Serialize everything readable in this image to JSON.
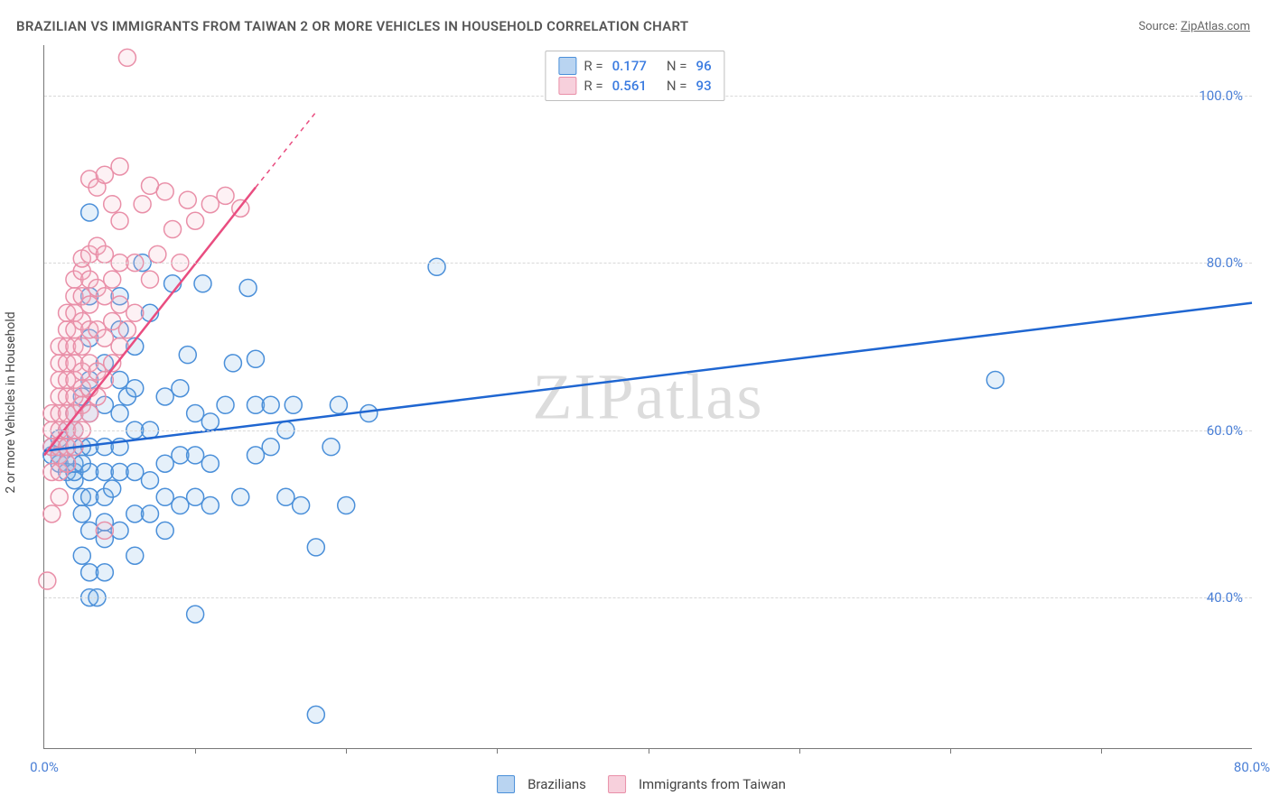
{
  "title": "BRAZILIAN VS IMMIGRANTS FROM TAIWAN 2 OR MORE VEHICLES IN HOUSEHOLD CORRELATION CHART",
  "source_prefix": "Source: ",
  "source_name": "ZipAtlas.com",
  "watermark": "ZIPatlas",
  "chart": {
    "type": "scatter",
    "ylabel": "2 or more Vehicles in Household",
    "xlim": [
      0,
      80
    ],
    "ylim": [
      22,
      106
    ],
    "xticks": [
      0,
      80
    ],
    "xtick_labels": [
      "0.0%",
      "80.0%"
    ],
    "xtick_minor": [
      10,
      20,
      30,
      40,
      50,
      60,
      70
    ],
    "yticks": [
      40,
      60,
      80,
      100
    ],
    "ytick_labels": [
      "40.0%",
      "60.0%",
      "80.0%",
      "100.0%"
    ],
    "grid_color": "#d8d8d8",
    "axis_color": "#777777",
    "background": "#ffffff",
    "marker_radius": 9.5,
    "marker_stroke_width": 1.5,
    "marker_fill_opacity": 0.2,
    "line_width": 2.5,
    "series": [
      {
        "name": "Brazilians",
        "color_stroke": "#4a8fd9",
        "color_fill": "#7fb3e6",
        "line_color": "#1f66d1",
        "R": "0.177",
        "N": "96",
        "trend": {
          "x1": 0,
          "y1": 57.5,
          "x2": 80,
          "y2": 75.2,
          "dash_after_x": 80
        },
        "points": [
          [
            0.5,
            57
          ],
          [
            0.5,
            58
          ],
          [
            1,
            56
          ],
          [
            1,
            57
          ],
          [
            1,
            59
          ],
          [
            1.5,
            55
          ],
          [
            1.5,
            56
          ],
          [
            1.5,
            58
          ],
          [
            1.5,
            60
          ],
          [
            2,
            54
          ],
          [
            2,
            55
          ],
          [
            2,
            56
          ],
          [
            2,
            58
          ],
          [
            2,
            60
          ],
          [
            2,
            62
          ],
          [
            2.5,
            45
          ],
          [
            2.5,
            50
          ],
          [
            2.5,
            52
          ],
          [
            2.5,
            56
          ],
          [
            2.5,
            58
          ],
          [
            2.5,
            64
          ],
          [
            3,
            40
          ],
          [
            3,
            43
          ],
          [
            3,
            48
          ],
          [
            3,
            52
          ],
          [
            3,
            55
          ],
          [
            3,
            58
          ],
          [
            3,
            62
          ],
          [
            3,
            66
          ],
          [
            3,
            71
          ],
          [
            3,
            76
          ],
          [
            3,
            86
          ],
          [
            4,
            43
          ],
          [
            4,
            47
          ],
          [
            4,
            49
          ],
          [
            4,
            52
          ],
          [
            4,
            55
          ],
          [
            4,
            58
          ],
          [
            4,
            63
          ],
          [
            4,
            68
          ],
          [
            4.5,
            53
          ],
          [
            5,
            48
          ],
          [
            5,
            55
          ],
          [
            5,
            58
          ],
          [
            5,
            62
          ],
          [
            5,
            66
          ],
          [
            5,
            72
          ],
          [
            5,
            76
          ],
          [
            5.5,
            64
          ],
          [
            6,
            45
          ],
          [
            6,
            50
          ],
          [
            6,
            55
          ],
          [
            6,
            60
          ],
          [
            6,
            65
          ],
          [
            6,
            70
          ],
          [
            6.5,
            80
          ],
          [
            7,
            50
          ],
          [
            7,
            54
          ],
          [
            7,
            60
          ],
          [
            7,
            74
          ],
          [
            8,
            48
          ],
          [
            8,
            52
          ],
          [
            8,
            56
          ],
          [
            8,
            64
          ],
          [
            8.5,
            77.5
          ],
          [
            9,
            51
          ],
          [
            9,
            57
          ],
          [
            9,
            65
          ],
          [
            9.5,
            69
          ],
          [
            10,
            38
          ],
          [
            10,
            52
          ],
          [
            10,
            57
          ],
          [
            10,
            62
          ],
          [
            10.5,
            77.5
          ],
          [
            11,
            51
          ],
          [
            11,
            56
          ],
          [
            11,
            61
          ],
          [
            12,
            63
          ],
          [
            12.5,
            68
          ],
          [
            13,
            52
          ],
          [
            13.5,
            77
          ],
          [
            14,
            57
          ],
          [
            14,
            63
          ],
          [
            14,
            68.5
          ],
          [
            15,
            58
          ],
          [
            15,
            63
          ],
          [
            16,
            52
          ],
          [
            16,
            60
          ],
          [
            16.5,
            63
          ],
          [
            17,
            51
          ],
          [
            18,
            46
          ],
          [
            19,
            58
          ],
          [
            19.5,
            63
          ],
          [
            20,
            51
          ],
          [
            21.5,
            62
          ],
          [
            26,
            79.5
          ],
          [
            63,
            66
          ],
          [
            18,
            26
          ],
          [
            3.5,
            40
          ]
        ]
      },
      {
        "name": "Immigrants from Taiwan",
        "color_stroke": "#e98fa8",
        "color_fill": "#f3b9c9",
        "line_color": "#e94d80",
        "R": "0.561",
        "N": "93",
        "trend": {
          "x1": 0,
          "y1": 57,
          "x2": 14,
          "y2": 89,
          "dash_after_x": 14,
          "x3": 18,
          "y3": 98
        },
        "points": [
          [
            0.2,
            42
          ],
          [
            0.5,
            50
          ],
          [
            0.5,
            55
          ],
          [
            0.5,
            58
          ],
          [
            0.5,
            60
          ],
          [
            0.5,
            62
          ],
          [
            1,
            52
          ],
          [
            1,
            55
          ],
          [
            1,
            57
          ],
          [
            1,
            58
          ],
          [
            1,
            60
          ],
          [
            1,
            62
          ],
          [
            1,
            64
          ],
          [
            1,
            66
          ],
          [
            1,
            68
          ],
          [
            1,
            70
          ],
          [
            1.5,
            56
          ],
          [
            1.5,
            58
          ],
          [
            1.5,
            60
          ],
          [
            1.5,
            62
          ],
          [
            1.5,
            64
          ],
          [
            1.5,
            66
          ],
          [
            1.5,
            68
          ],
          [
            1.5,
            70
          ],
          [
            1.5,
            72
          ],
          [
            1.5,
            74
          ],
          [
            2,
            58
          ],
          [
            2,
            60
          ],
          [
            2,
            62
          ],
          [
            2,
            64
          ],
          [
            2,
            66
          ],
          [
            2,
            68
          ],
          [
            2,
            70
          ],
          [
            2,
            72
          ],
          [
            2,
            74
          ],
          [
            2,
            76
          ],
          [
            2,
            78
          ],
          [
            2.5,
            60
          ],
          [
            2.5,
            63
          ],
          [
            2.5,
            65
          ],
          [
            2.5,
            67
          ],
          [
            2.5,
            70
          ],
          [
            2.5,
            73
          ],
          [
            2.5,
            76
          ],
          [
            2.5,
            79
          ],
          [
            2.5,
            80.5
          ],
          [
            3,
            62
          ],
          [
            3,
            65
          ],
          [
            3,
            68
          ],
          [
            3,
            72
          ],
          [
            3,
            75
          ],
          [
            3,
            78
          ],
          [
            3,
            81
          ],
          [
            3,
            90
          ],
          [
            3.5,
            64
          ],
          [
            3.5,
            67
          ],
          [
            3.5,
            72
          ],
          [
            3.5,
            77
          ],
          [
            3.5,
            82
          ],
          [
            3.5,
            89
          ],
          [
            4,
            48
          ],
          [
            4,
            66
          ],
          [
            4,
            71
          ],
          [
            4,
            76
          ],
          [
            4,
            81
          ],
          [
            4,
            90.5
          ],
          [
            4.5,
            68
          ],
          [
            4.5,
            73
          ],
          [
            4.5,
            78
          ],
          [
            4.5,
            87
          ],
          [
            5,
            70
          ],
          [
            5,
            75
          ],
          [
            5,
            80
          ],
          [
            5,
            85
          ],
          [
            5,
            91.5
          ],
          [
            5.5,
            72
          ],
          [
            5.5,
            104.5
          ],
          [
            6,
            74
          ],
          [
            6,
            80
          ],
          [
            6.5,
            87
          ],
          [
            7,
            78
          ],
          [
            7,
            89.2
          ],
          [
            7.5,
            81
          ],
          [
            8,
            88.5
          ],
          [
            8.5,
            84
          ],
          [
            9,
            80
          ],
          [
            9.5,
            87.5
          ],
          [
            10,
            85
          ],
          [
            11,
            87
          ],
          [
            12,
            88
          ],
          [
            13,
            86.5
          ]
        ]
      }
    ]
  },
  "legend_top": [
    {
      "swatch_fill": "#b9d4f1",
      "swatch_stroke": "#4a8fd9",
      "R": "0.177",
      "N": "96"
    },
    {
      "swatch_fill": "#f7d0dc",
      "swatch_stroke": "#e98fa8",
      "R": "0.561",
      "N": "93"
    }
  ],
  "legend_bottom": [
    {
      "swatch_fill": "#b9d4f1",
      "swatch_stroke": "#4a8fd9",
      "label": "Brazilians"
    },
    {
      "swatch_fill": "#f7d0dc",
      "swatch_stroke": "#e98fa8",
      "label": "Immigrants from Taiwan"
    }
  ]
}
